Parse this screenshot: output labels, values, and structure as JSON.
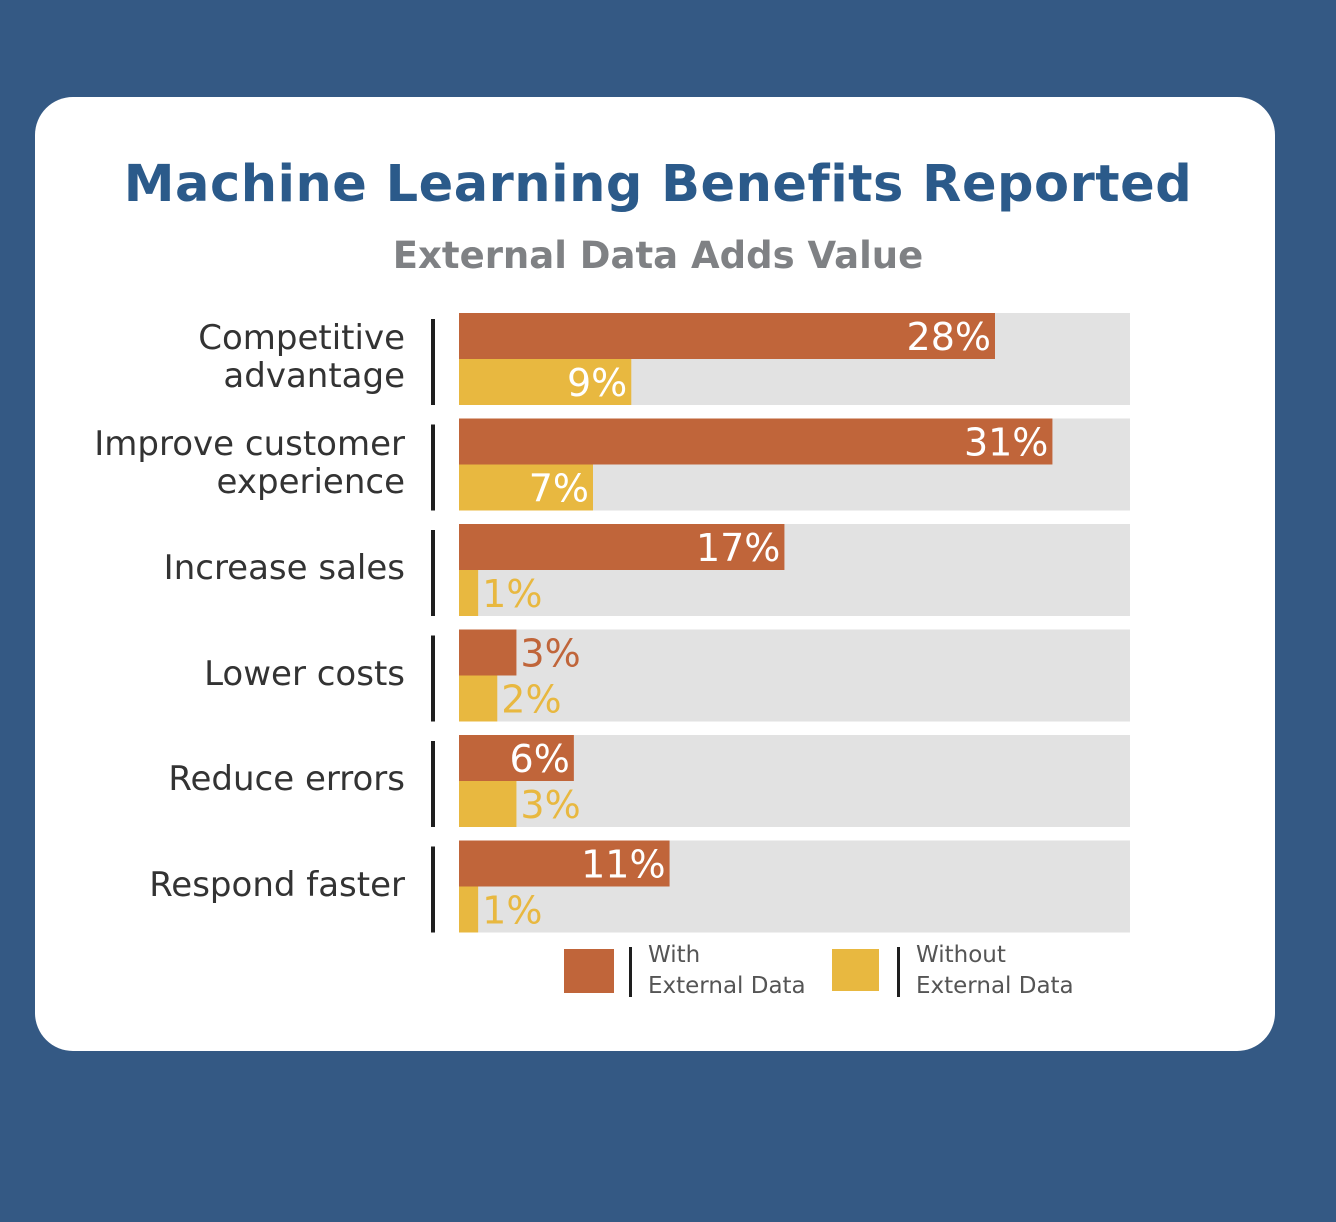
{
  "chart_data": {
    "type": "bar",
    "orientation": "horizontal",
    "title": "Machine Learning Benefits Reported",
    "subtitle": "External Data Adds Value",
    "categories": [
      [
        "Competitive",
        "advantage"
      ],
      [
        "Improve customer",
        "experience"
      ],
      [
        "Increase sales"
      ],
      [
        "Lower costs"
      ],
      [
        "Reduce errors"
      ],
      [
        "Respond faster"
      ]
    ],
    "series": [
      {
        "name": "With External Data",
        "legend_lines": [
          "With",
          "External Data"
        ],
        "color": "#c0653a",
        "values": [
          28,
          31,
          17,
          3,
          6,
          11
        ],
        "labels": [
          "28%",
          "31%",
          "17%",
          "3%",
          "6%",
          "11%"
        ]
      },
      {
        "name": "Without External Data",
        "legend_lines": [
          "Without",
          "External Data"
        ],
        "color": "#e8b840",
        "values": [
          9,
          7,
          1,
          2,
          3,
          1
        ],
        "labels": [
          "9%",
          "7%",
          "1%",
          "2%",
          "3%",
          "1%"
        ]
      }
    ],
    "xlim": [
      0,
      35
    ],
    "background_track_color": "#e2e2e2",
    "legend_position": "bottom"
  }
}
